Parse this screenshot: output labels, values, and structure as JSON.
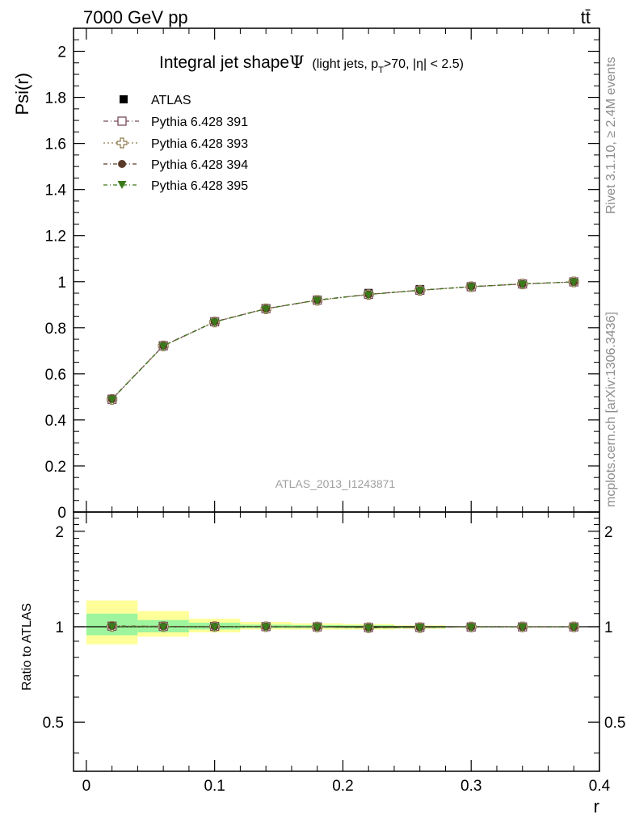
{
  "header": {
    "energy_label": "7000 GeV pp",
    "process_label": "tt̄"
  },
  "side_labels": {
    "rivet": "Rivet 3.1.10, ≥ 2.4M events",
    "mcplots": "mcplots.cern.ch [arXiv:1306.3436]"
  },
  "chart_data": [
    {
      "type": "line",
      "title_main": "Integral jet shape",
      "title_symbol": "Ψ",
      "title_sub_a": "(light jets, p",
      "title_sub_T": "T",
      "title_sub_b": ">70, |η| < 2.5)",
      "ylabel": "Psi(r)",
      "analysis_tag": "ATLAS_2013_I1243871",
      "xlim": [
        -0.01,
        0.4
      ],
      "ylim": [
        0,
        2.1
      ],
      "yticks": [
        0,
        0.2,
        0.4,
        0.6,
        0.8,
        1,
        1.2,
        1.4,
        1.6,
        1.8,
        2
      ],
      "ytick_labels": [
        "0",
        "0.2",
        "0.4",
        "0.6",
        "0.8",
        "1",
        "1.2",
        "1.4",
        "1.6",
        "1.8",
        "2"
      ],
      "x": [
        0.02,
        0.06,
        0.1,
        0.14,
        0.18,
        0.22,
        0.26,
        0.3,
        0.34,
        0.38
      ],
      "data": {
        "name": "ATLAS",
        "values": [
          0.488,
          0.72,
          0.824,
          0.882,
          0.921,
          0.951,
          0.968,
          0.98,
          0.991,
          1.0
        ],
        "color": "#000000"
      },
      "series": [
        {
          "name": "Pythia 6.428 391",
          "values": [
            0.49,
            0.722,
            0.826,
            0.883,
            0.92,
            0.945,
            0.963,
            0.978,
            0.99,
            0.999
          ],
          "color": "#7a4a5e",
          "marker": "open-square"
        },
        {
          "name": "Pythia 6.428 393",
          "values": [
            0.489,
            0.721,
            0.825,
            0.882,
            0.919,
            0.944,
            0.962,
            0.978,
            0.99,
            0.999
          ],
          "color": "#8c7a4a",
          "marker": "open-cross"
        },
        {
          "name": "Pythia 6.428 394",
          "values": [
            0.491,
            0.722,
            0.826,
            0.883,
            0.92,
            0.945,
            0.963,
            0.979,
            0.99,
            0.999
          ],
          "color": "#5a3a28",
          "marker": "filled-circle"
        },
        {
          "name": "Pythia 6.428 395",
          "values": [
            0.49,
            0.721,
            0.825,
            0.882,
            0.92,
            0.944,
            0.963,
            0.978,
            0.99,
            0.999
          ],
          "color": "#3a7a1a",
          "marker": "filled-triangle-down"
        }
      ],
      "legend_position": "top-left"
    },
    {
      "type": "line",
      "ylabel": "Ratio to ATLAS",
      "xlabel": "r",
      "xlim": [
        -0.01,
        0.4
      ],
      "xticks": [
        0,
        0.1,
        0.2,
        0.3,
        0.4
      ],
      "xtick_labels": [
        "0",
        "0.1",
        "0.2",
        "0.3",
        "0.4"
      ],
      "ylim": [
        0.35,
        2.3
      ],
      "yscale": "log",
      "yticks": [
        0.5,
        1,
        2
      ],
      "ytick_labels": [
        "0.5",
        "1",
        "2"
      ],
      "bands": {
        "x_edges": [
          0.0,
          0.04,
          0.08,
          0.12,
          0.16,
          0.2,
          0.24,
          0.28,
          0.32,
          0.36,
          0.4
        ],
        "inner_lo": [
          0.94,
          0.96,
          0.98,
          0.99,
          0.99,
          0.99,
          0.99,
          1.0,
          1.0,
          1.0
        ],
        "inner_hi": [
          1.1,
          1.05,
          1.03,
          1.015,
          1.012,
          1.01,
          1.005,
          1.0,
          1.0,
          1.0
        ],
        "outer_lo": [
          0.88,
          0.93,
          0.96,
          0.98,
          0.98,
          0.98,
          0.985,
          1.0,
          1.0,
          1.0
        ],
        "outer_hi": [
          1.21,
          1.12,
          1.06,
          1.035,
          1.025,
          1.02,
          1.01,
          1.0,
          1.0,
          1.0
        ],
        "inner_color": "#9ef59e",
        "outer_color": "#ffff99"
      },
      "series": [
        {
          "name": "Pythia 6.428 391",
          "values": [
            1.004,
            1.003,
            1.002,
            1.001,
            0.999,
            0.994,
            0.995,
            0.998,
            0.999,
            0.999
          ]
        },
        {
          "name": "Pythia 6.428 393",
          "values": [
            1.002,
            1.001,
            1.001,
            1.0,
            0.998,
            0.993,
            0.994,
            0.998,
            0.999,
            0.999
          ]
        },
        {
          "name": "Pythia 6.428 394",
          "values": [
            1.006,
            1.003,
            1.002,
            1.001,
            0.999,
            0.994,
            0.995,
            0.999,
            0.999,
            0.999
          ]
        },
        {
          "name": "Pythia 6.428 395",
          "values": [
            1.004,
            1.001,
            1.001,
            1.0,
            0.999,
            0.993,
            0.995,
            0.998,
            0.999,
            0.999
          ]
        }
      ]
    }
  ]
}
